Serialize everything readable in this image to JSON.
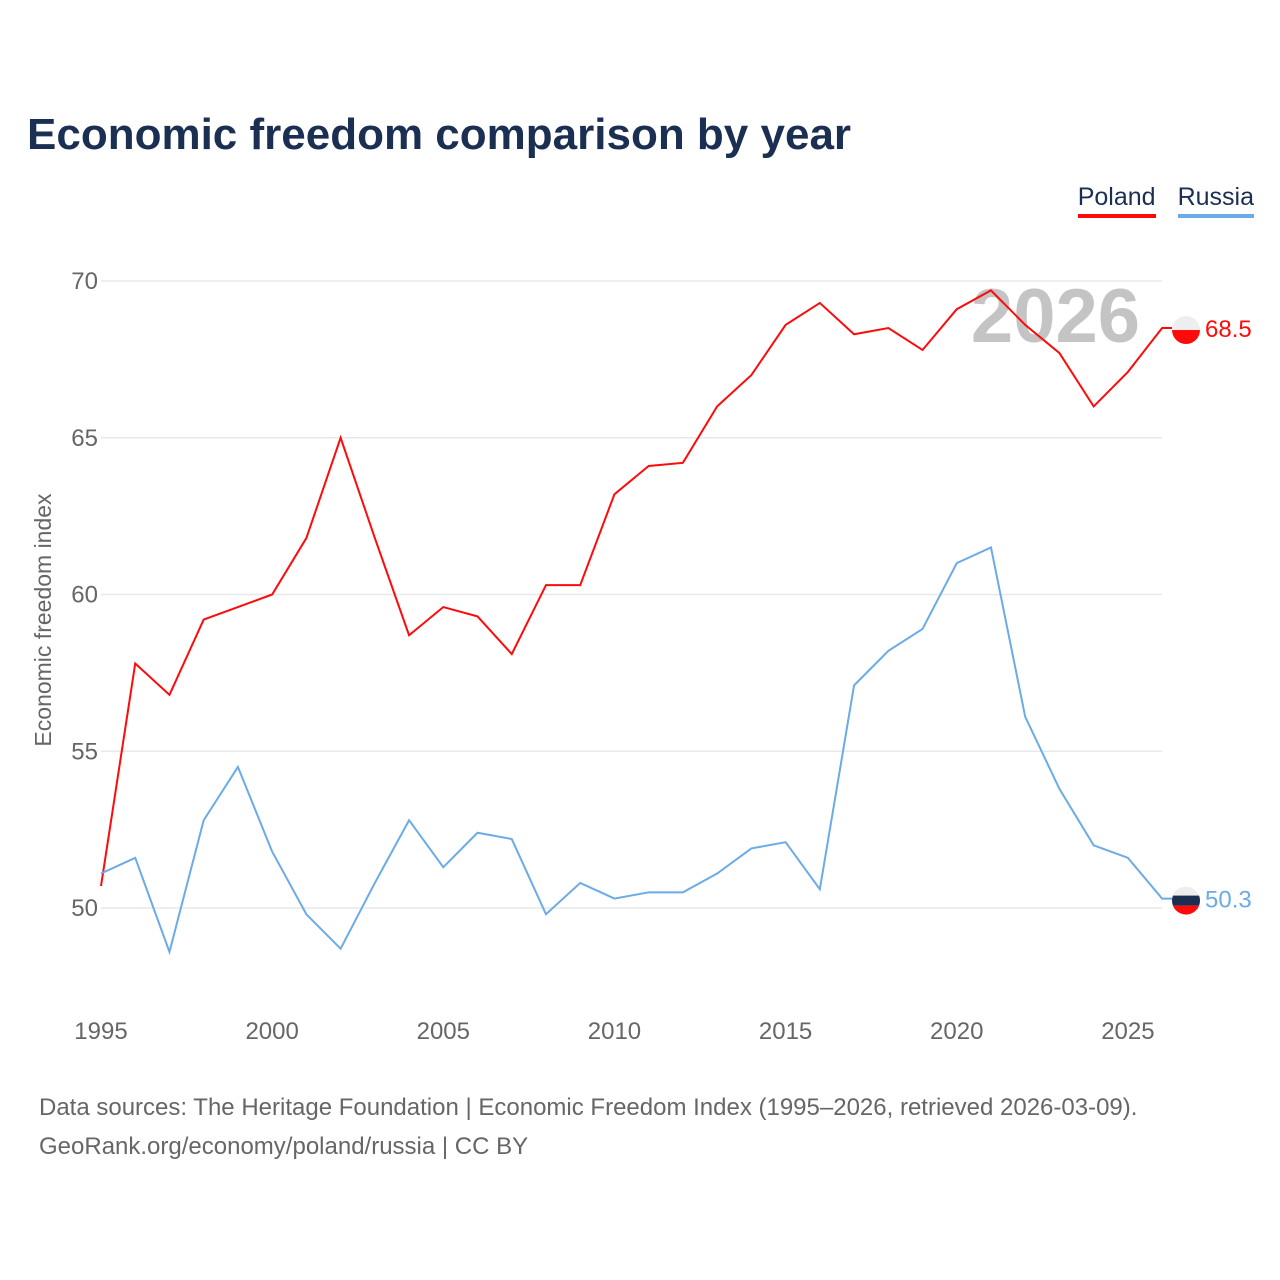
{
  "chart_data": {
    "type": "line",
    "title": "Economic freedom comparison by year",
    "xlabel": "",
    "ylabel": "Economic freedom index",
    "x": [
      1995,
      1996,
      1997,
      1998,
      1999,
      2000,
      2001,
      2002,
      2003,
      2004,
      2005,
      2006,
      2007,
      2008,
      2009,
      2010,
      2011,
      2012,
      2013,
      2014,
      2015,
      2016,
      2017,
      2018,
      2019,
      2020,
      2021,
      2022,
      2023,
      2024,
      2025,
      2026
    ],
    "xlim": [
      1995,
      2026
    ],
    "ylim": [
      47,
      71
    ],
    "xticks": [
      "1995",
      "2000",
      "2005",
      "2010",
      "2015",
      "2020",
      "2025"
    ],
    "yticks": [
      "50",
      "55",
      "60",
      "65",
      "70"
    ],
    "grid": true,
    "legend_placement": "top-right",
    "year_watermark": "2026",
    "series": [
      {
        "name": "Poland",
        "color": "#ff0a0a",
        "end_label": "68.5",
        "values": [
          50.7,
          57.8,
          56.8,
          59.2,
          59.6,
          60.0,
          61.8,
          65.0,
          61.8,
          58.7,
          59.6,
          59.3,
          58.1,
          60.3,
          60.3,
          63.2,
          64.1,
          64.2,
          66.0,
          67.0,
          68.6,
          69.3,
          68.3,
          68.5,
          67.8,
          69.1,
          69.7,
          68.6,
          67.7,
          66.0,
          67.1,
          68.5
        ]
      },
      {
        "name": "Russia",
        "color": "#6aabe8",
        "end_label": "50.3",
        "values": [
          51.1,
          51.6,
          48.6,
          52.8,
          54.5,
          51.8,
          49.8,
          48.7,
          50.8,
          52.8,
          51.3,
          52.4,
          52.2,
          49.8,
          50.8,
          50.3,
          50.5,
          50.5,
          51.1,
          51.9,
          52.1,
          50.6,
          57.1,
          58.2,
          58.9,
          61.0,
          61.5,
          56.1,
          53.8,
          52.0,
          51.6,
          50.3
        ]
      }
    ]
  },
  "footer": {
    "line1": "Data sources: The Heritage Foundation | Economic Freedom Index (1995–2026, retrieved 2026-03-09).",
    "line2": "GeoRank.org/economy/poland/russia | CC BY"
  }
}
